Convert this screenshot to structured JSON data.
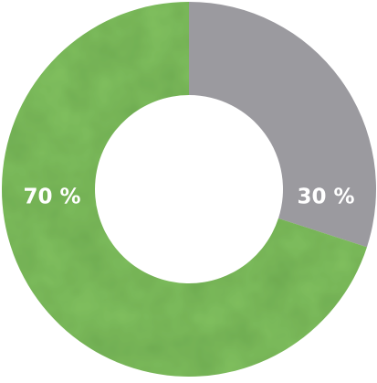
{
  "chart_data": {
    "type": "donut",
    "values": [
      30,
      70
    ],
    "value_labels": [
      "30 %",
      "70 %"
    ],
    "colors": [
      "#9b9a9f",
      "#80bf5e"
    ]
  }
}
